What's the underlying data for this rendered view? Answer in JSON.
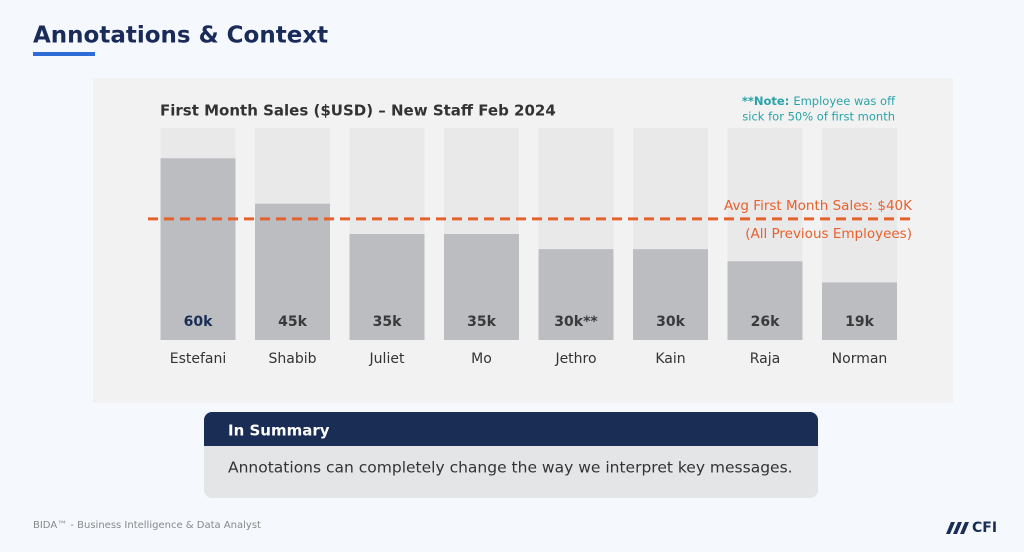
{
  "header": {
    "title": "Annotations & Context"
  },
  "chart_data": {
    "type": "bar",
    "title": "First Month Sales ($USD) – New Staff Feb 2024",
    "categories": [
      "Estefani",
      "Shabib",
      "Juliet",
      "Mo",
      "Jethro",
      "Kain",
      "Raja",
      "Norman"
    ],
    "values": [
      60,
      45,
      35,
      35,
      30,
      30,
      26,
      19
    ],
    "value_labels": [
      "60k",
      "45k",
      "35k",
      "35k",
      "30k**",
      "30k",
      "26k",
      "19k"
    ],
    "color": "#bcbdc1",
    "ylim": [
      0,
      70
    ],
    "reference_line": {
      "value": 40,
      "color": "#e8612c",
      "labels": [
        "Avg First Month Sales: $40K",
        "(All Previous Employees)"
      ]
    },
    "note": {
      "label": "**Note:",
      "lines": [
        "Employee was off",
        "sick for 50% of first month"
      ],
      "color": "#2aa3a8"
    }
  },
  "summary": {
    "title": "In Summary",
    "text": "Annotations can completely change the way we interpret key messages."
  },
  "footer": {
    "text": "BIDA™ - Business Intelligence & Data Analyst",
    "logo": "CFI"
  }
}
